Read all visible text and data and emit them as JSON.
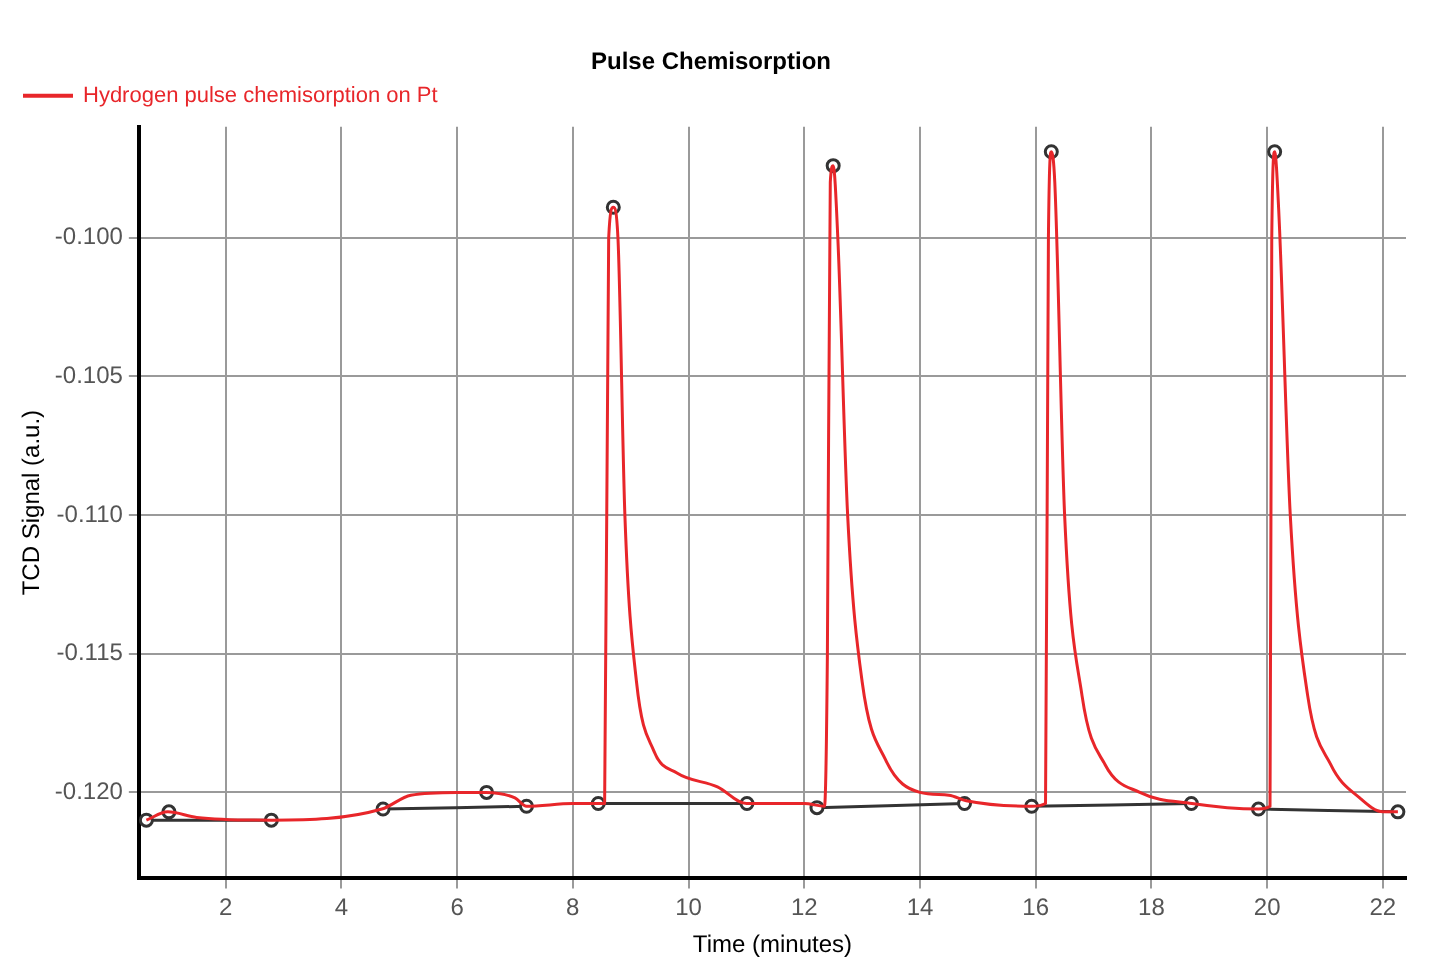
{
  "chart_data": {
    "type": "line",
    "title": "Pulse Chemisorption",
    "xlabel": "Time (minutes)",
    "ylabel": "TCD Signal (a.u.)",
    "xlim": [
      0.5,
      22.4
    ],
    "ylim": [
      -0.1231,
      -0.096
    ],
    "xticks": [
      2,
      4,
      6,
      8,
      10,
      12,
      14,
      16,
      18,
      20,
      22
    ],
    "yticks": [
      {
        "value": -0.12,
        "label": "-0.120"
      },
      {
        "value": -0.115,
        "label": "-0.115"
      },
      {
        "value": -0.11,
        "label": "-0.110"
      },
      {
        "value": -0.105,
        "label": "-0.105"
      },
      {
        "value": -0.1,
        "label": "-0.100"
      }
    ],
    "grid": true,
    "legend": "top left",
    "line_style": "solid",
    "series": [
      {
        "name": "Hydrogen pulse chemisorption on Pt",
        "type": "line",
        "color": "#e8262a",
        "marker": "none",
        "x": [
          0.63,
          1.0,
          1.5,
          2.8,
          4.7,
          5.2,
          6.0,
          6.5,
          7.0,
          7.2,
          8.0,
          8.55,
          8.62,
          8.7,
          8.78,
          8.9,
          9.1,
          9.4,
          9.8,
          10.5,
          11.0,
          12.0,
          12.35,
          12.4,
          12.45,
          12.5,
          12.58,
          12.75,
          13.0,
          13.4,
          14.0,
          14.5,
          14.8,
          15.93,
          16.17,
          16.22,
          16.27,
          16.33,
          16.5,
          16.8,
          17.2,
          17.8,
          18.7,
          19.85,
          20.05,
          20.08,
          20.13,
          20.2,
          20.4,
          20.7,
          21.1,
          21.6,
          22.0,
          22.26
        ],
        "values": [
          -0.121,
          -0.1207,
          -0.1209,
          -0.121,
          -0.1206,
          -0.1201,
          -0.12,
          -0.12,
          -0.1202,
          -0.1205,
          -0.1204,
          -0.1204,
          -0.1,
          -0.0989,
          -0.1,
          -0.11,
          -0.116,
          -0.1185,
          -0.1193,
          -0.1198,
          -0.1204,
          -0.1204,
          -0.1205,
          -0.115,
          -0.098,
          -0.0974,
          -0.1,
          -0.11,
          -0.116,
          -0.1188,
          -0.12,
          -0.1201,
          -0.1203,
          -0.1205,
          -0.1204,
          -0.1,
          -0.0969,
          -0.098,
          -0.11,
          -0.1165,
          -0.119,
          -0.12,
          -0.1204,
          -0.1206,
          -0.1205,
          -0.1,
          -0.0969,
          -0.099,
          -0.11,
          -0.1165,
          -0.119,
          -0.1202,
          -0.1207,
          -0.1207
        ]
      },
      {
        "type": "line",
        "color": "#333333",
        "marker": "circle",
        "x": [
          0.63,
          2.79,
          null,
          4.72,
          7.2,
          null,
          8.44,
          11.01,
          null,
          12.22,
          14.77,
          null,
          15.93,
          18.69,
          null,
          19.85,
          22.26
        ],
        "values": [
          -0.121,
          -0.121,
          null,
          -0.1206,
          -0.1205,
          null,
          -0.1204,
          -0.1204,
          null,
          -0.12055,
          -0.1204,
          null,
          -0.1205,
          -0.1204,
          null,
          -0.1206,
          -0.1207
        ]
      },
      {
        "type": "scatter",
        "color": "#333333",
        "marker": "circle",
        "x": [
          1.02,
          6.51,
          8.7,
          12.5,
          16.27,
          20.13
        ],
        "values": [
          -0.1207,
          -0.12,
          -0.0989,
          -0.0974,
          -0.0969,
          -0.0969
        ]
      }
    ]
  }
}
